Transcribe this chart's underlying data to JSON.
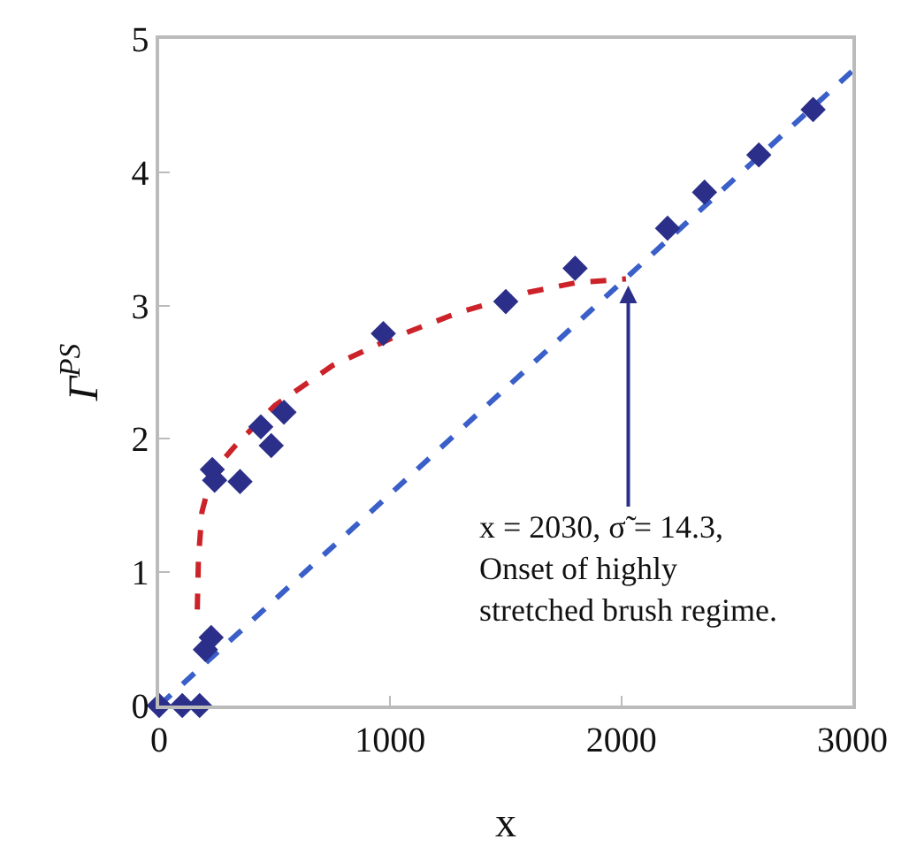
{
  "chart_data": {
    "type": "scatter",
    "xlabel": "x",
    "ylabel": "Γ$^{PS}$",
    "xlim": [
      0,
      3000
    ],
    "ylim": [
      0,
      5
    ],
    "xticks": [
      0,
      1000,
      2000,
      3000
    ],
    "yticks": [
      0,
      1,
      2,
      3,
      4,
      5
    ],
    "grid": false,
    "series": [
      {
        "type": "line",
        "color": "#3a5fc8",
        "line_style": "dashed",
        "marker": "none",
        "x": [
          0,
          3000
        ],
        "values": [
          0,
          4.76
        ]
      },
      {
        "type": "line",
        "color": "#cc2229",
        "line_style": "dashed",
        "marker": "none",
        "x": [
          165,
          170,
          185,
          230,
          330,
          500,
          750,
          1000,
          1300,
          1600,
          1800,
          2020
        ],
        "values": [
          0.72,
          1.1,
          1.45,
          1.75,
          1.95,
          2.25,
          2.55,
          2.75,
          2.95,
          3.1,
          3.17,
          3.2
        ]
      },
      {
        "color": "#2b2f8a",
        "marker": "diamond",
        "x": [
          0,
          100,
          175,
          200,
          225,
          230,
          240,
          350,
          440,
          485,
          540,
          970,
          1500,
          1800,
          2200,
          2360,
          2595,
          2830
        ],
        "values": [
          0,
          0,
          0,
          0.42,
          0.51,
          1.77,
          1.69,
          1.68,
          2.09,
          1.95,
          2.2,
          2.79,
          3.03,
          3.28,
          3.58,
          3.85,
          4.13,
          4.47
        ]
      }
    ],
    "annotations": [
      {
        "text": "x = 2030, σ̃ = 14.3,\nOnset of highly\nstretched brush regime.",
        "x": 2030,
        "y": 3.15
      }
    ]
  }
}
